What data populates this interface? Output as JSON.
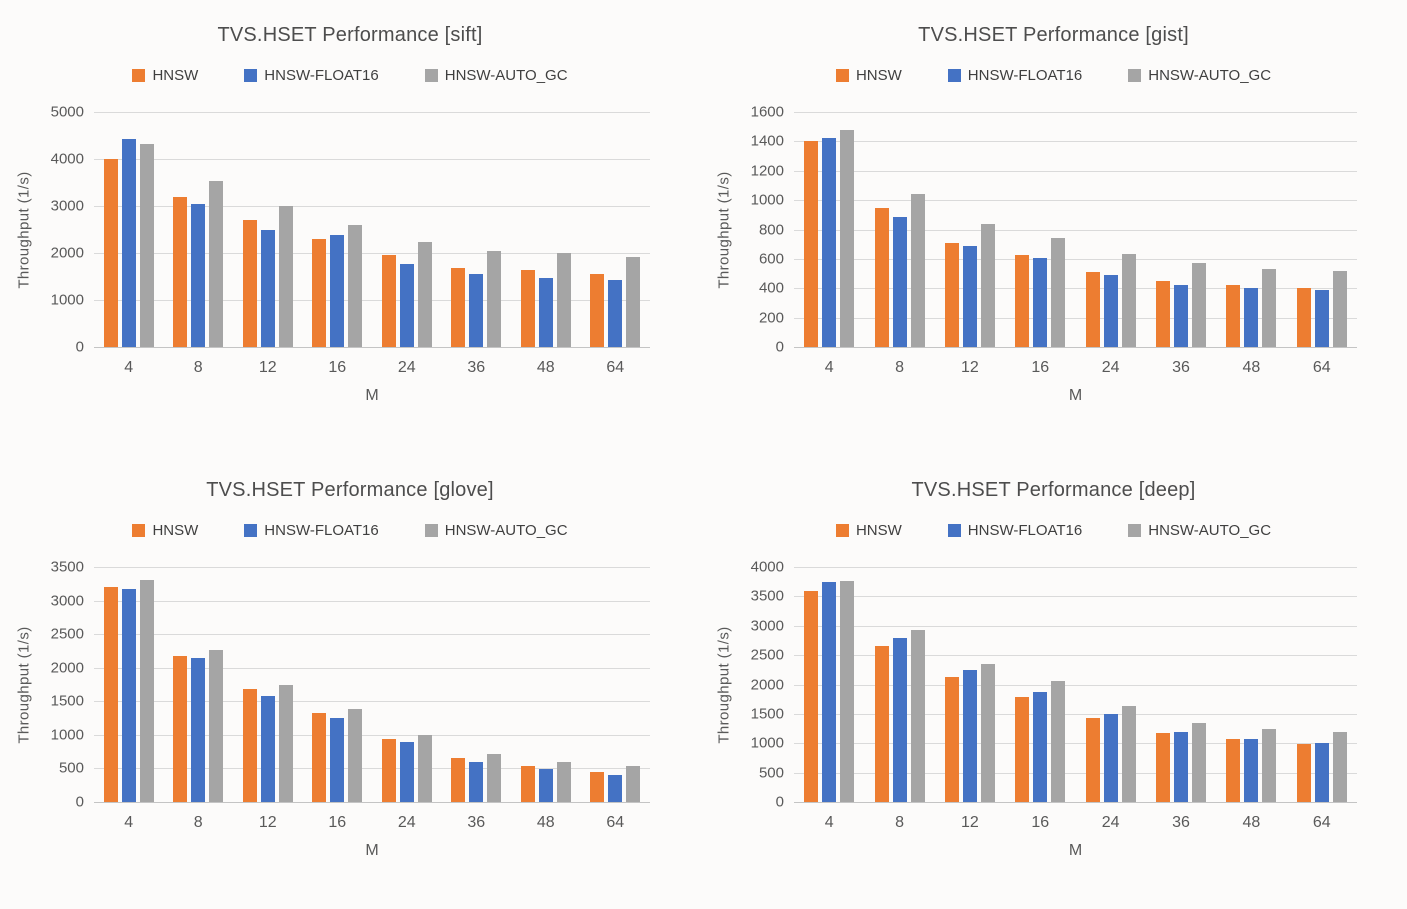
{
  "colors": {
    "hnsw": "#ED7D31",
    "hnsw_float16": "#4472C4",
    "hnsw_auto_gc": "#A5A5A5",
    "gridline": "#DADADA",
    "axis_line": "#C4C4C4",
    "title_text": "#4D4D4D",
    "tick_text": "#595959"
  },
  "chart_data": [
    {
      "type": "bar",
      "title": "TVS.HSET Performance [sift]",
      "xlabel": "M",
      "ylabel": "Throughput (1/s)",
      "legend_position": "top",
      "grid": true,
      "categories": [
        "4",
        "8",
        "12",
        "16",
        "24",
        "36",
        "48",
        "64"
      ],
      "ylim": [
        0,
        5000
      ],
      "ytick_step": 1000,
      "series": [
        {
          "name": "HNSW",
          "color": "#ED7D31",
          "values": [
            4010,
            3190,
            2700,
            2290,
            1950,
            1690,
            1630,
            1560
          ]
        },
        {
          "name": "HNSW-FLOAT16",
          "color": "#4472C4",
          "values": [
            4430,
            3050,
            2480,
            2390,
            1760,
            1560,
            1470,
            1430
          ]
        },
        {
          "name": "HNSW-AUTO_GC",
          "color": "#A5A5A5",
          "values": [
            4320,
            3530,
            2990,
            2600,
            2230,
            2040,
            1990,
            1920
          ]
        }
      ]
    },
    {
      "type": "bar",
      "title": "TVS.HSET Performance [gist]",
      "xlabel": "M",
      "ylabel": "Throughput (1/s)",
      "legend_position": "top",
      "grid": true,
      "categories": [
        "4",
        "8",
        "12",
        "16",
        "24",
        "36",
        "48",
        "64"
      ],
      "ylim": [
        0,
        1600
      ],
      "ytick_step": 200,
      "series": [
        {
          "name": "HNSW",
          "color": "#ED7D31",
          "values": [
            1400,
            945,
            710,
            625,
            510,
            450,
            425,
            400
          ]
        },
        {
          "name": "HNSW-FLOAT16",
          "color": "#4472C4",
          "values": [
            1420,
            885,
            690,
            605,
            490,
            425,
            405,
            385
          ]
        },
        {
          "name": "HNSW-AUTO_GC",
          "color": "#A5A5A5",
          "values": [
            1480,
            1040,
            835,
            740,
            630,
            570,
            530,
            520
          ]
        }
      ]
    },
    {
      "type": "bar",
      "title": "TVS.HSET Performance [glove]",
      "xlabel": "M",
      "ylabel": "Throughput (1/s)",
      "legend_position": "top",
      "grid": true,
      "categories": [
        "4",
        "8",
        "12",
        "16",
        "24",
        "36",
        "48",
        "64"
      ],
      "ylim": [
        0,
        3500
      ],
      "ytick_step": 500,
      "series": [
        {
          "name": "HNSW",
          "color": "#ED7D31",
          "values": [
            3200,
            2180,
            1690,
            1330,
            940,
            660,
            530,
            445
          ]
        },
        {
          "name": "HNSW-FLOAT16",
          "color": "#4472C4",
          "values": [
            3180,
            2140,
            1580,
            1250,
            895,
            600,
            490,
            405
          ]
        },
        {
          "name": "HNSW-AUTO_GC",
          "color": "#A5A5A5",
          "values": [
            3310,
            2270,
            1740,
            1380,
            1000,
            710,
            600,
            530
          ]
        }
      ]
    },
    {
      "type": "bar",
      "title": "TVS.HSET Performance [deep]",
      "xlabel": "M",
      "ylabel": "Throughput (1/s)",
      "legend_position": "top",
      "grid": true,
      "categories": [
        "4",
        "8",
        "12",
        "16",
        "24",
        "36",
        "48",
        "64"
      ],
      "ylim": [
        0,
        4000
      ],
      "ytick_step": 500,
      "series": [
        {
          "name": "HNSW",
          "color": "#ED7D31",
          "values": [
            3600,
            2650,
            2130,
            1780,
            1430,
            1180,
            1080,
            990
          ]
        },
        {
          "name": "HNSW-FLOAT16",
          "color": "#4472C4",
          "values": [
            3740,
            2800,
            2240,
            1880,
            1490,
            1200,
            1080,
            1010
          ]
        },
        {
          "name": "HNSW-AUTO_GC",
          "color": "#A5A5A5",
          "values": [
            3760,
            2930,
            2350,
            2060,
            1630,
            1350,
            1250,
            1200
          ]
        }
      ]
    }
  ]
}
